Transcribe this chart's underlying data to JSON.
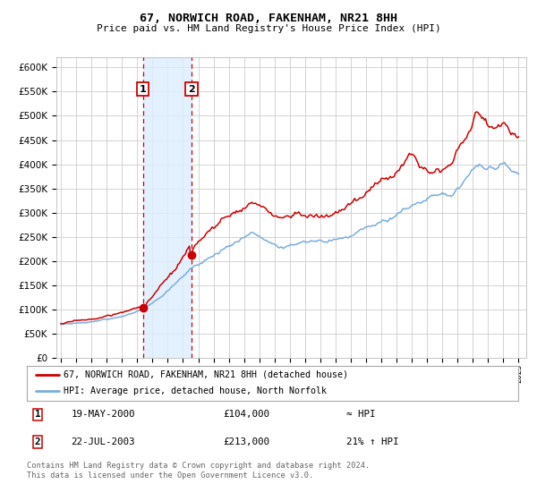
{
  "title": "67, NORWICH ROAD, FAKENHAM, NR21 8HH",
  "subtitle": "Price paid vs. HM Land Registry's House Price Index (HPI)",
  "legend_line1": "67, NORWICH ROAD, FAKENHAM, NR21 8HH (detached house)",
  "legend_line2": "HPI: Average price, detached house, North Norfolk",
  "footnote": "Contains HM Land Registry data © Crown copyright and database right 2024.\nThis data is licensed under the Open Government Licence v3.0.",
  "purchase1_x": 2000.38,
  "purchase1_y": 104000,
  "purchase2_x": 2003.55,
  "purchase2_y": 213000,
  "shade_x1": 2000.38,
  "shade_x2": 2003.55,
  "ylim": [
    0,
    620000
  ],
  "xlim_start": 1994.7,
  "xlim_end": 2025.5,
  "hpi_color": "#7aaddc",
  "price_color": "#cc0000",
  "bg_color": "#ffffff",
  "grid_color": "#cccccc",
  "shade_color": "#ddeeff",
  "table_row1_num": "1",
  "table_row1_date": "19-MAY-2000",
  "table_row1_price": "£104,000",
  "table_row1_change": "≈ HPI",
  "table_row2_num": "2",
  "table_row2_date": "22-JUL-2003",
  "table_row2_price": "£213,000",
  "table_row2_change": "21% ↑ HPI"
}
